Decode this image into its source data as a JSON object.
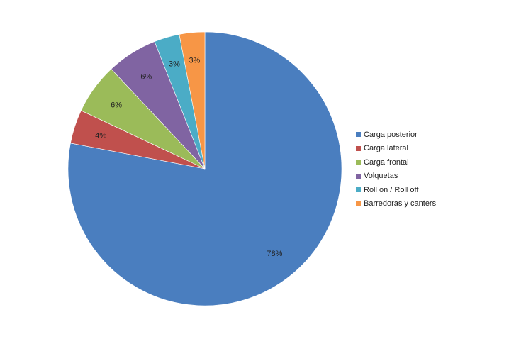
{
  "chart_data": {
    "type": "pie",
    "title": "",
    "legend_position": "right",
    "start_angle_deg": 0,
    "direction": "clockwise",
    "categories": [
      "Carga posterior",
      "Carga lateral",
      "Carga frontal",
      "Volquetas",
      "Roll on / Roll off",
      "Barredoras y canters"
    ],
    "values": [
      78,
      4,
      6,
      6,
      3,
      3
    ],
    "data_labels": [
      "78%",
      "4%",
      "6%",
      "6%",
      "3%",
      "3%"
    ],
    "colors": [
      "#4a7ebf",
      "#c0504d",
      "#9bbb59",
      "#8064a2",
      "#4bacc6",
      "#f79646"
    ]
  }
}
